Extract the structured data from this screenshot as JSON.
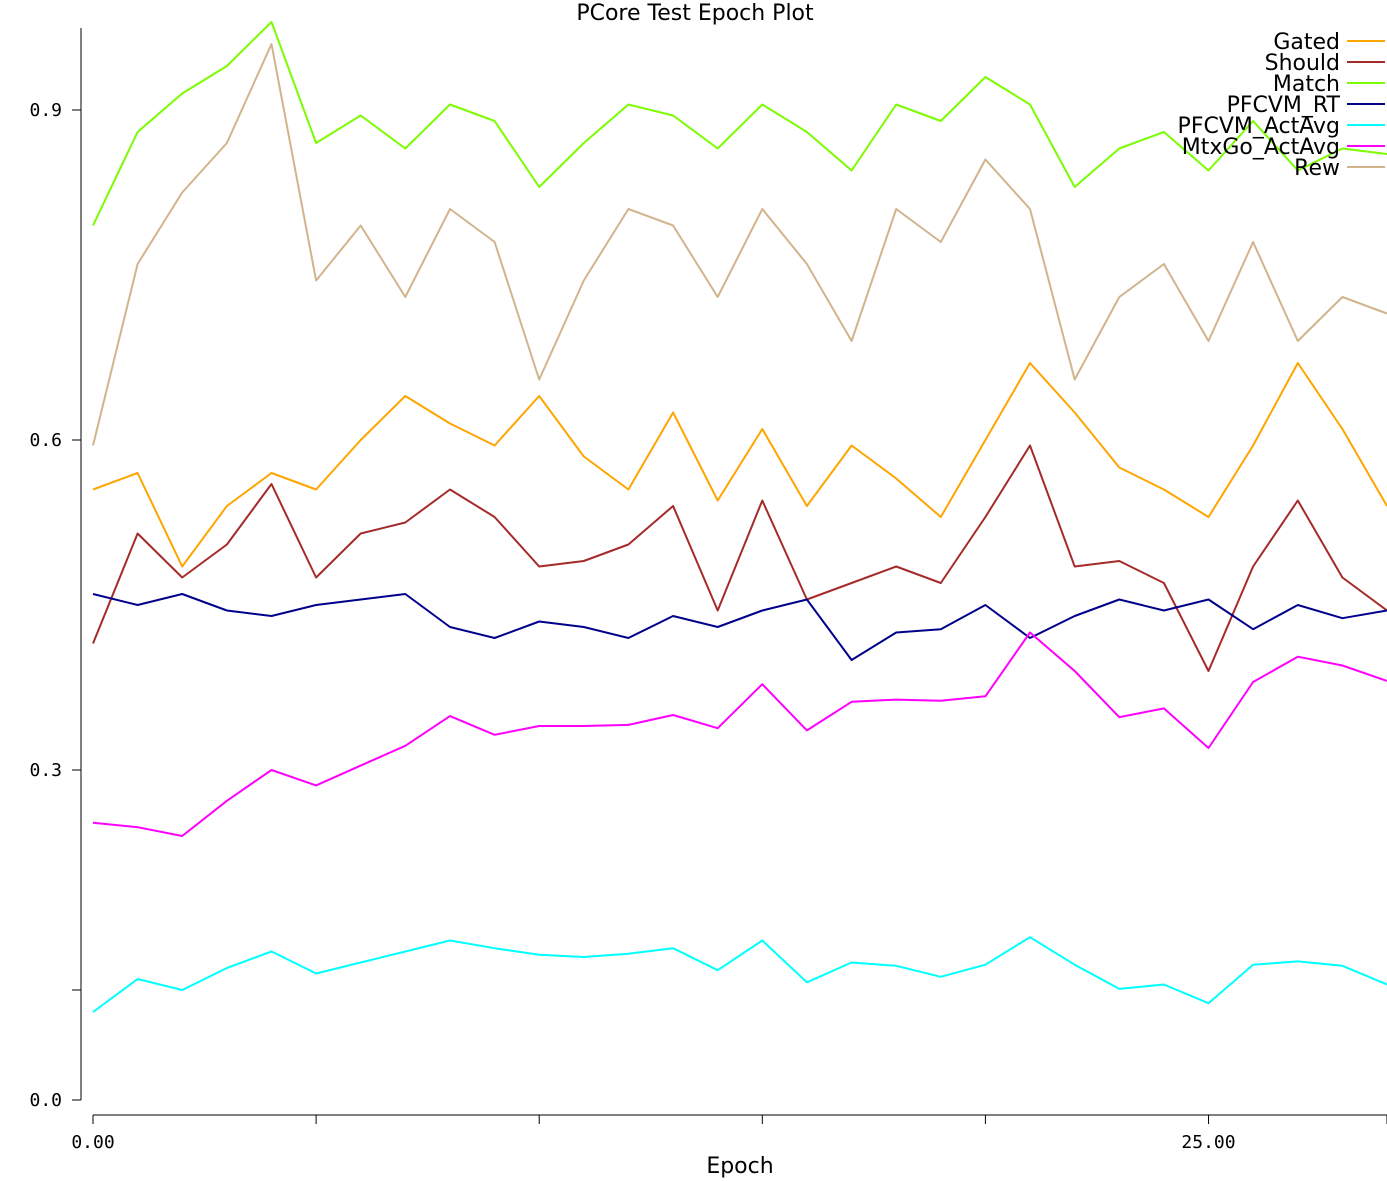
{
  "chart_data": {
    "type": "line",
    "title": "PCore Test Epoch Plot",
    "xlabel": "Epoch",
    "ylabel": "",
    "xlim": [
      0,
      29
    ],
    "ylim": [
      0,
      0.98
    ],
    "x_tick_values": [
      0,
      5,
      10,
      15,
      20,
      25,
      29
    ],
    "x_tick_labels": [
      "0.00",
      "",
      "",
      "",
      "",
      "25.00",
      ""
    ],
    "y_tick_values": [
      0,
      0.1,
      0.3,
      0.6,
      0.9
    ],
    "y_tick_labels": [
      "0.0",
      "",
      "0.3",
      "0.6",
      "0.9"
    ],
    "grid": false,
    "legend_position": "top-right",
    "x": [
      0,
      1,
      2,
      3,
      4,
      5,
      6,
      7,
      8,
      9,
      10,
      11,
      12,
      13,
      14,
      15,
      16,
      17,
      18,
      19,
      20,
      21,
      22,
      23,
      24,
      25,
      26,
      27,
      28,
      29
    ],
    "series": [
      {
        "name": "Gated",
        "color": "#FFA500",
        "values": [
          0.555,
          0.57,
          0.485,
          0.54,
          0.57,
          0.555,
          0.6,
          0.64,
          0.615,
          0.595,
          0.64,
          0.585,
          0.555,
          0.625,
          0.545,
          0.61,
          0.54,
          0.595,
          0.565,
          0.53,
          0.6,
          0.67,
          0.625,
          0.575,
          0.555,
          0.53,
          0.595,
          0.67,
          0.61,
          0.54
        ]
      },
      {
        "name": "Should",
        "color": "#A52A2A",
        "values": [
          0.415,
          0.515,
          0.475,
          0.505,
          0.56,
          0.475,
          0.515,
          0.525,
          0.555,
          0.53,
          0.485,
          0.49,
          0.505,
          0.54,
          0.445,
          0.545,
          0.455,
          0.47,
          0.485,
          0.47,
          0.53,
          0.595,
          0.485,
          0.49,
          0.47,
          0.39,
          0.485,
          0.545,
          0.475,
          0.445
        ]
      },
      {
        "name": "Match",
        "color": "#7CFC00",
        "values": [
          0.795,
          0.88,
          0.915,
          0.94,
          0.98,
          0.87,
          0.895,
          0.865,
          0.905,
          0.89,
          0.83,
          0.87,
          0.905,
          0.895,
          0.865,
          0.905,
          0.88,
          0.845,
          0.905,
          0.89,
          0.93,
          0.905,
          0.83,
          0.865,
          0.88,
          0.845,
          0.89,
          0.845,
          0.865,
          0.86
        ]
      },
      {
        "name": "PFCVM_RT",
        "color": "#00008B",
        "values": [
          0.46,
          0.45,
          0.46,
          0.445,
          0.44,
          0.45,
          0.455,
          0.46,
          0.43,
          0.42,
          0.435,
          0.43,
          0.42,
          0.44,
          0.43,
          0.445,
          0.455,
          0.4,
          0.425,
          0.428,
          0.45,
          0.42,
          0.44,
          0.455,
          0.445,
          0.455,
          0.428,
          0.45,
          0.438,
          0.445
        ]
      },
      {
        "name": "PFCVM_ActAvg",
        "color": "#00FFFF",
        "values": [
          0.08,
          0.11,
          0.1,
          0.12,
          0.135,
          0.115,
          0.125,
          0.135,
          0.145,
          0.138,
          0.132,
          0.13,
          0.133,
          0.138,
          0.118,
          0.145,
          0.107,
          0.125,
          0.122,
          0.112,
          0.123,
          0.148,
          0.123,
          0.101,
          0.105,
          0.088,
          0.123,
          0.126,
          0.122,
          0.105
        ]
      },
      {
        "name": "MtxGo_ActAvg",
        "color": "#FF00FF",
        "values": [
          0.252,
          0.248,
          0.24,
          0.272,
          0.3,
          0.286,
          0.304,
          0.322,
          0.349,
          0.332,
          0.34,
          0.34,
          0.341,
          0.35,
          0.338,
          0.378,
          0.336,
          0.362,
          0.364,
          0.363,
          0.367,
          0.425,
          0.39,
          0.348,
          0.356,
          0.32,
          0.38,
          0.403,
          0.395,
          0.381
        ]
      },
      {
        "name": "Rew",
        "color": "#D2B48C",
        "values": [
          0.595,
          0.76,
          0.825,
          0.87,
          0.96,
          0.745,
          0.795,
          0.73,
          0.81,
          0.78,
          0.655,
          0.745,
          0.81,
          0.795,
          0.73,
          0.81,
          0.76,
          0.69,
          0.81,
          0.78,
          0.855,
          0.81,
          0.655,
          0.73,
          0.76,
          0.69,
          0.78,
          0.69,
          0.73,
          0.715
        ]
      }
    ]
  }
}
